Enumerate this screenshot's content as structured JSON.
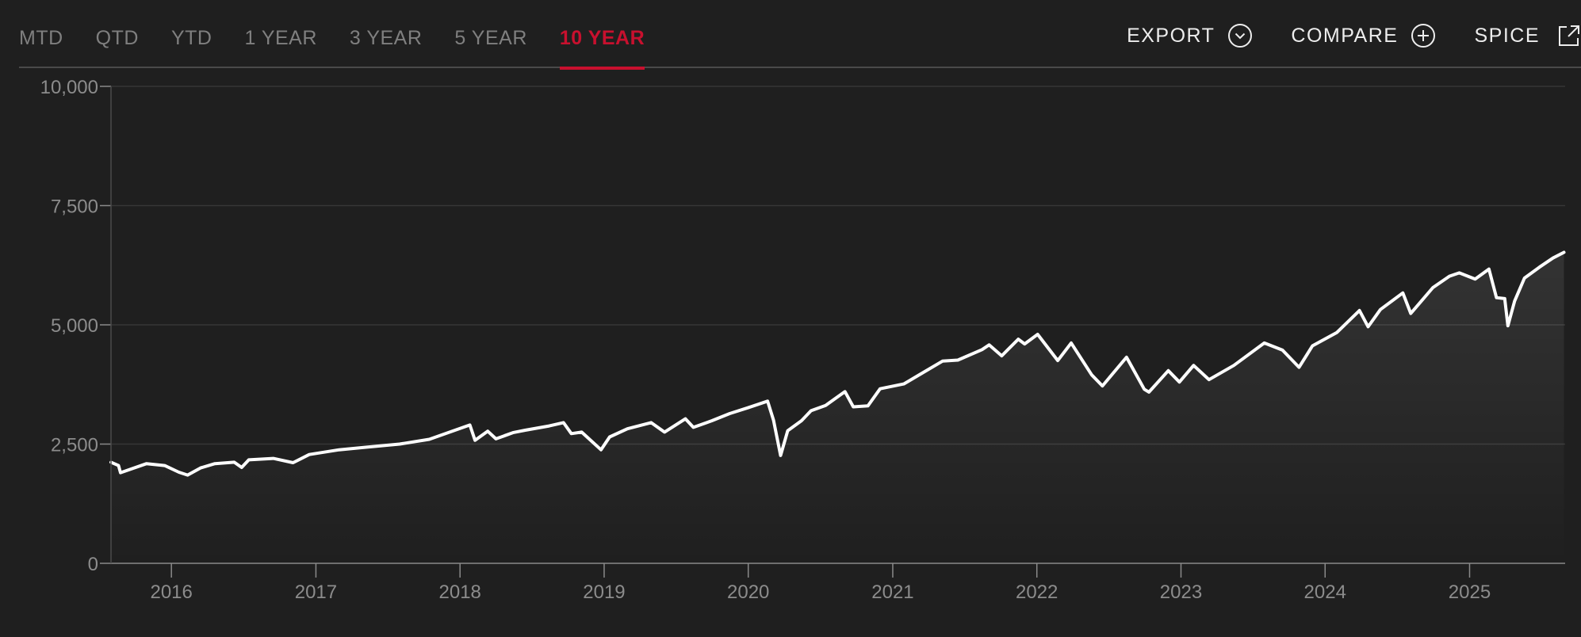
{
  "tabs": [
    {
      "label": "MTD",
      "active": false
    },
    {
      "label": "QTD",
      "active": false
    },
    {
      "label": "YTD",
      "active": false
    },
    {
      "label": "1 YEAR",
      "active": false
    },
    {
      "label": "3 YEAR",
      "active": false
    },
    {
      "label": "5 YEAR",
      "active": false
    },
    {
      "label": "10 YEAR",
      "active": true
    }
  ],
  "actions": {
    "export_label": "EXPORT",
    "export_icon": "chevron-down-circle-icon",
    "compare_label": "COMPARE",
    "compare_icon": "plus-circle-icon",
    "spice_label": "SPICE",
    "spice_icon": "external-link-icon"
  },
  "colors": {
    "background": "#1f1f1f",
    "accent": "#c8102e",
    "line": "#ffffff",
    "grid": "#3a3a3a",
    "tick_text": "#8c8c8c"
  },
  "chart_data": {
    "type": "area",
    "title": "",
    "xlabel": "",
    "ylabel": "",
    "ylim": [
      0,
      10000
    ],
    "xlim": [
      "2015-08-01",
      "2025-08-31"
    ],
    "grid": true,
    "y_ticks": [
      0,
      2500,
      5000,
      7500,
      10000
    ],
    "y_tick_labels": [
      "0",
      "2,500",
      "5,000",
      "7,500",
      "10,000"
    ],
    "x_ticks": [
      "2016-01-01",
      "2017-01-01",
      "2018-01-01",
      "2019-01-01",
      "2020-01-01",
      "2021-01-01",
      "2022-01-01",
      "2023-01-01",
      "2024-01-01",
      "2025-01-01"
    ],
    "x_tick_labels": [
      "2016",
      "2017",
      "2018",
      "2019",
      "2020",
      "2021",
      "2022",
      "2023",
      "2024",
      "2025"
    ],
    "series": [
      {
        "x": [
          "2015-08-01",
          "2015-08-20",
          "2015-08-25",
          "2015-09-15",
          "2015-10-30",
          "2015-12-15",
          "2016-01-20",
          "2016-02-11",
          "2016-03-15",
          "2016-04-20",
          "2016-06-08",
          "2016-06-27",
          "2016-07-15",
          "2016-09-15",
          "2016-11-04",
          "2016-12-15",
          "2017-03-01",
          "2017-05-15",
          "2017-08-01",
          "2017-10-15",
          "2018-01-26",
          "2018-02-08",
          "2018-03-12",
          "2018-04-02",
          "2018-05-15",
          "2018-06-15",
          "2018-08-15",
          "2018-09-20",
          "2018-10-10",
          "2018-11-05",
          "2018-12-24",
          "2019-01-15",
          "2019-03-01",
          "2019-04-30",
          "2019-06-03",
          "2019-07-26",
          "2019-08-15",
          "2019-10-01",
          "2019-11-15",
          "2019-12-31",
          "2020-02-19",
          "2020-03-05",
          "2020-03-23",
          "2020-04-10",
          "2020-05-15",
          "2020-06-08",
          "2020-07-15",
          "2020-09-02",
          "2020-09-23",
          "2020-10-30",
          "2020-11-30",
          "2021-01-29",
          "2021-03-15",
          "2021-05-07",
          "2021-06-15",
          "2021-08-15",
          "2021-09-02",
          "2021-10-04",
          "2021-11-15",
          "2021-12-01",
          "2022-01-03",
          "2022-02-23",
          "2022-03-29",
          "2022-05-20",
          "2022-06-16",
          "2022-08-16",
          "2022-09-30",
          "2022-10-12",
          "2022-11-30",
          "2022-12-28",
          "2023-02-02",
          "2023-03-13",
          "2023-05-15",
          "2023-07-31",
          "2023-09-15",
          "2023-10-27",
          "2023-11-30",
          "2024-01-31",
          "2024-03-28",
          "2024-04-19",
          "2024-05-20",
          "2024-07-16",
          "2024-08-05",
          "2024-09-30",
          "2024-11-11",
          "2024-12-06",
          "2025-01-15",
          "2025-02-19",
          "2025-03-10",
          "2025-03-31",
          "2025-04-08",
          "2025-04-25",
          "2025-05-20",
          "2025-06-27",
          "2025-07-31",
          "2025-08-28"
        ],
        "y": [
          2120,
          2050,
          1900,
          1960,
          2090,
          2050,
          1910,
          1850,
          2000,
          2090,
          2120,
          2010,
          2170,
          2200,
          2110,
          2280,
          2380,
          2440,
          2500,
          2600,
          2900,
          2580,
          2770,
          2610,
          2740,
          2790,
          2880,
          2950,
          2720,
          2750,
          2380,
          2650,
          2820,
          2950,
          2750,
          3030,
          2850,
          2990,
          3140,
          3260,
          3400,
          3000,
          2260,
          2780,
          2990,
          3200,
          3310,
          3600,
          3280,
          3300,
          3660,
          3760,
          3980,
          4240,
          4260,
          4480,
          4580,
          4350,
          4700,
          4600,
          4800,
          4250,
          4620,
          3950,
          3720,
          4320,
          3650,
          3590,
          4040,
          3800,
          4150,
          3850,
          4150,
          4620,
          4470,
          4110,
          4560,
          4840,
          5300,
          4960,
          5320,
          5670,
          5240,
          5780,
          6020,
          6090,
          5960,
          6170,
          5570,
          5550,
          4980,
          5500,
          5980,
          6210,
          6400,
          6520
        ]
      }
    ]
  }
}
